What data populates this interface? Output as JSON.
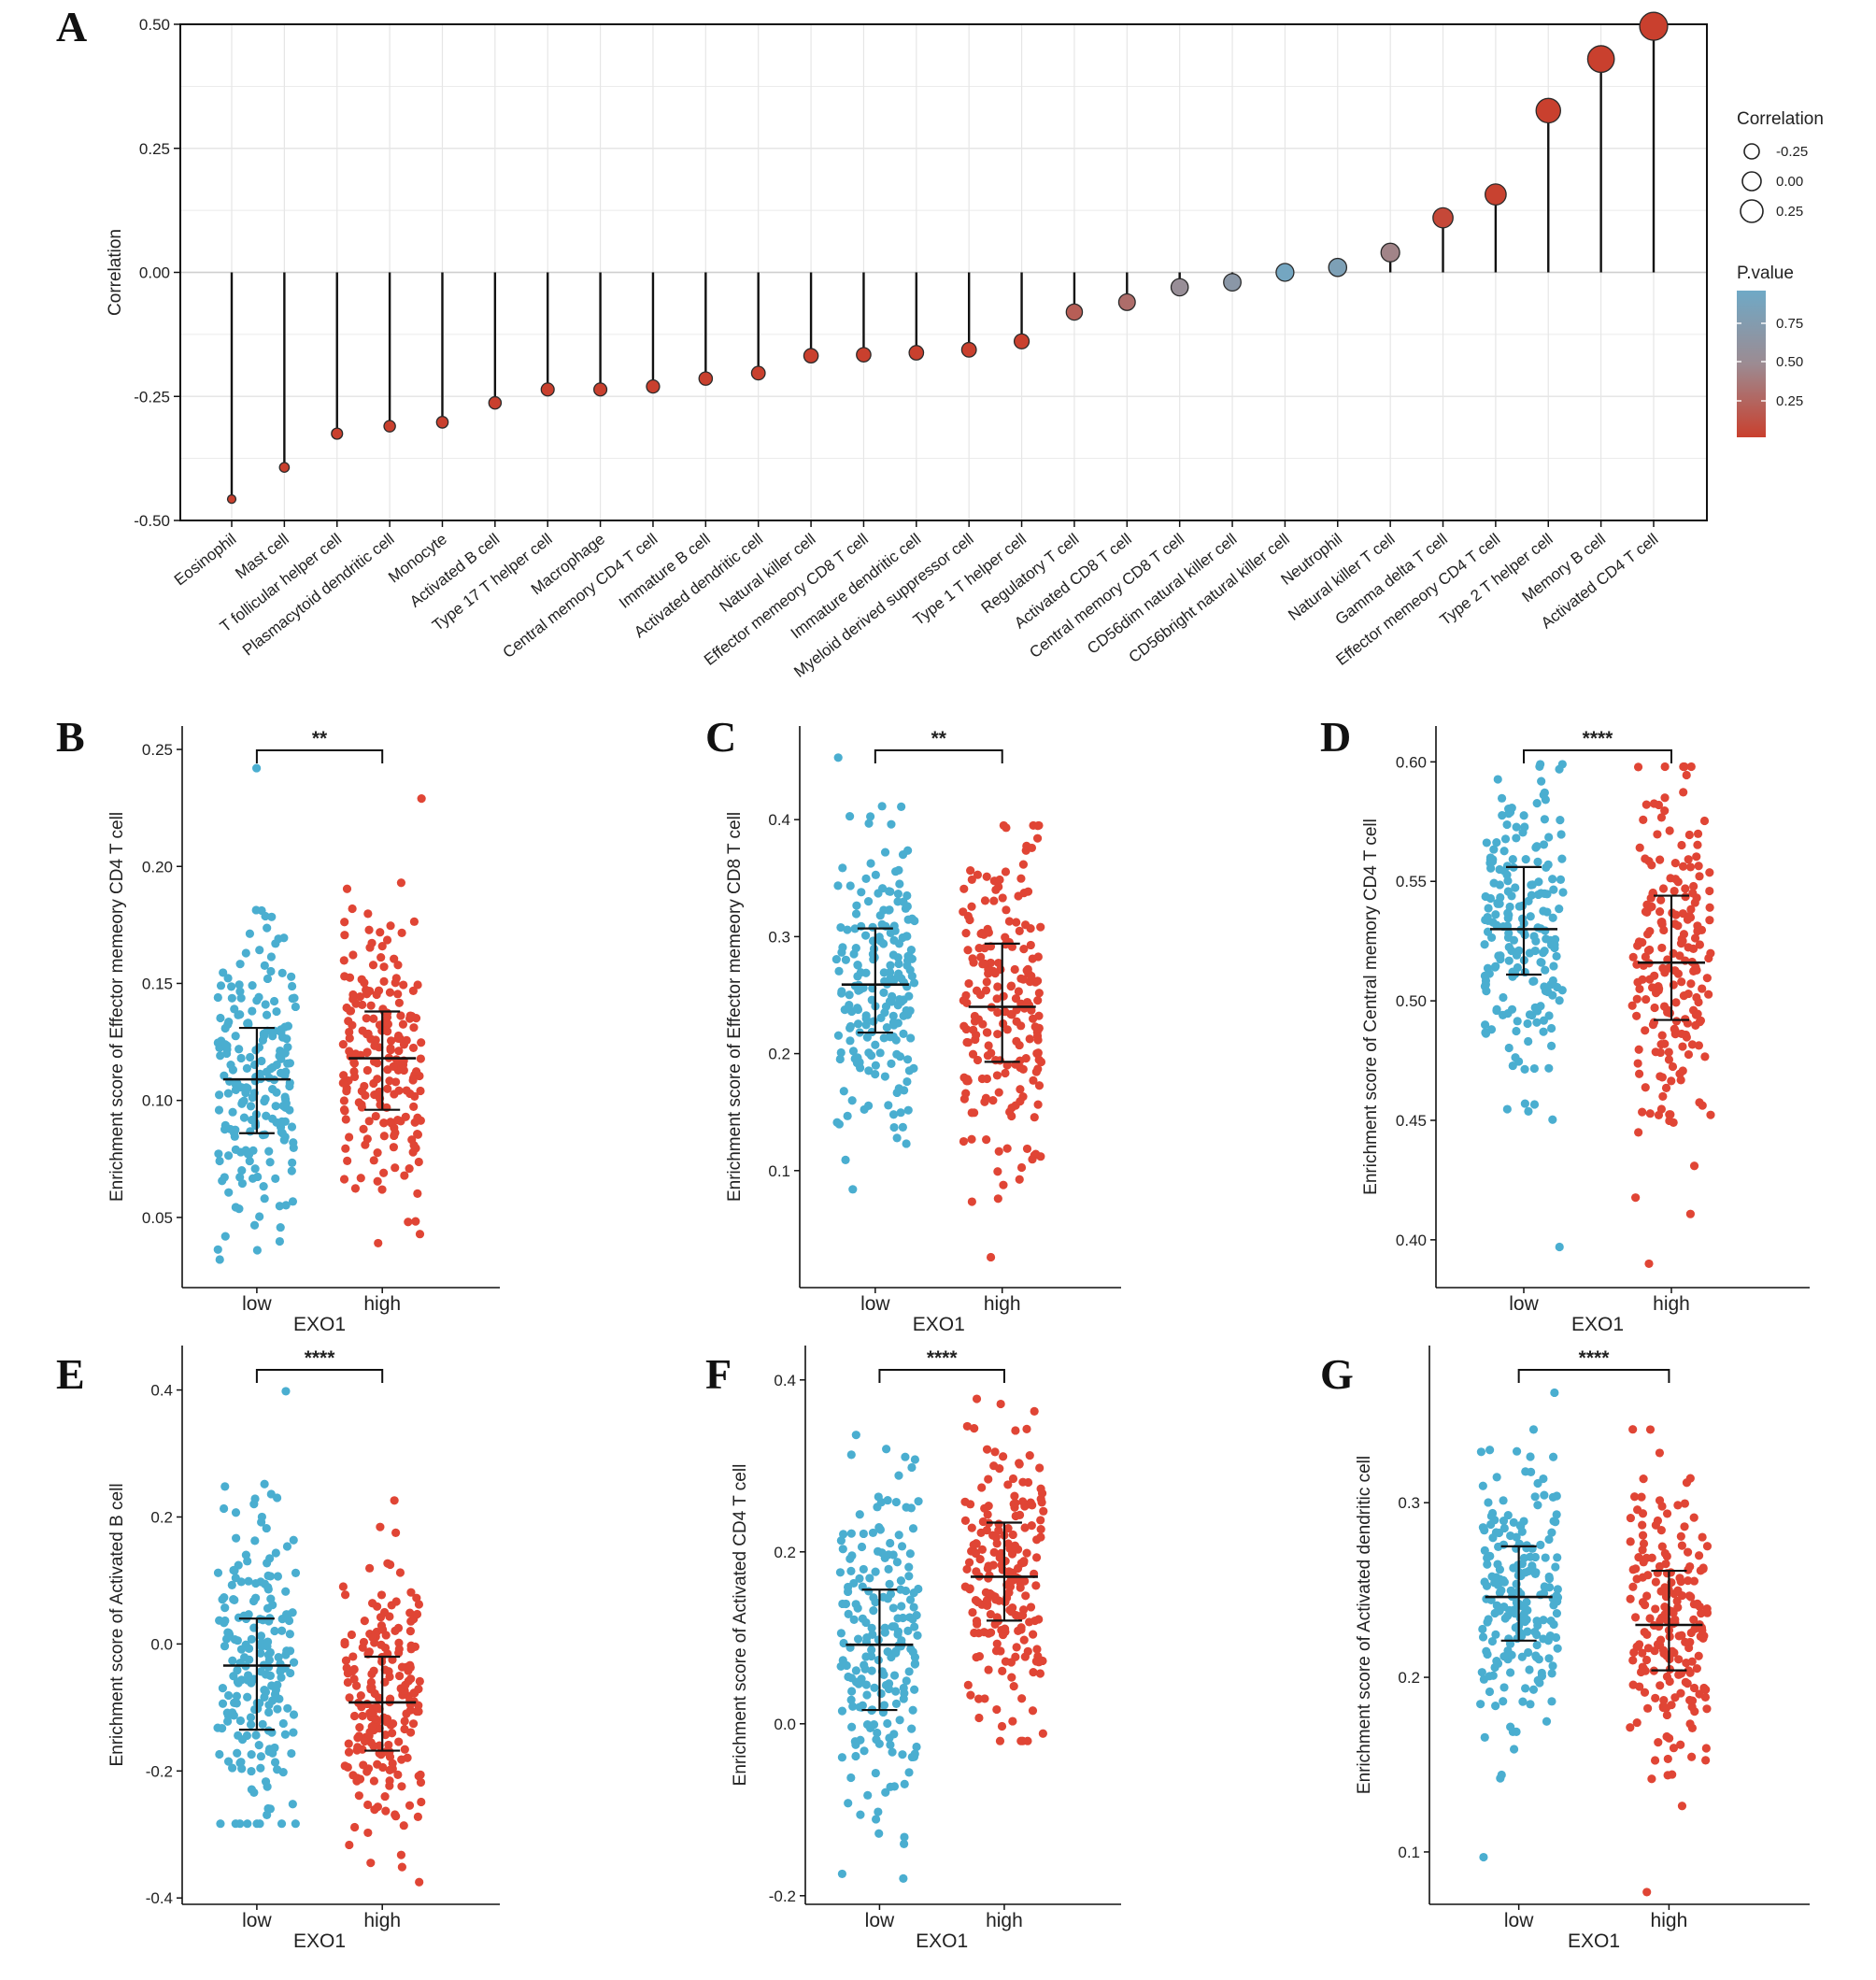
{
  "figure_labels": [
    "A",
    "B",
    "C",
    "D",
    "E",
    "F",
    "G"
  ],
  "colors": {
    "low": "#4aaed0",
    "high": "#e04535",
    "grid": "#e6e6e6",
    "stem": "#111111"
  },
  "chart_data": [
    {
      "id": "A",
      "type": "lollipop",
      "ylabel": "Correlation",
      "ylim": [
        -0.5,
        0.5
      ],
      "yticks": [
        {
          "v": 0.5,
          "t": "0.50"
        },
        {
          "v": 0.25,
          "t": "0.25"
        },
        {
          "v": 0,
          "t": "0.00"
        },
        {
          "v": -0.25,
          "t": "-0.25"
        },
        {
          "v": -0.5,
          "t": "-0.50"
        }
      ],
      "categories": [
        "Eosinophil",
        "Mast cell",
        "T follicular helper cell",
        "Plasmacytoid dendritic cell",
        "Monocyte",
        "Activated B cell",
        "Type 17 T helper cell",
        "Macrophage",
        "Central memory CD4 T cell",
        "Immature  B cell",
        "Activated dendritic cell",
        "Natural killer cell",
        "Effector memeory CD8 T cell",
        "Immature dendritic cell",
        "Myeloid derived suppressor cell",
        "Type 1 T helper cell",
        "Regulatory T cell",
        "Activated CD8 T cell",
        "Central memory CD8 T cell",
        "CD56dim natural killer cell",
        "CD56bright natural killer cell",
        "Neutrophil",
        "Natural killer T cell",
        "Gamma delta T cell",
        "Effector memeory CD4 T cell",
        "Type 2 T helper cell",
        "Memory B cell",
        "Activated CD4 T cell"
      ],
      "values": [
        -0.457,
        -0.393,
        -0.325,
        -0.31,
        -0.302,
        -0.263,
        -0.236,
        -0.236,
        -0.23,
        -0.214,
        -0.203,
        -0.168,
        -0.166,
        -0.162,
        -0.156,
        -0.139,
        -0.08,
        -0.06,
        -0.03,
        -0.02,
        0.0,
        0.01,
        0.04,
        0.11,
        0.157,
        0.326,
        0.43,
        0.496
      ],
      "pvalues": [
        0.0,
        0.0,
        0.0,
        0.0,
        0.0,
        0.0,
        0.0,
        0.0,
        0.0,
        0.0,
        0.0,
        0.0,
        0.0,
        0.0,
        0.0,
        0.0,
        0.2,
        0.3,
        0.55,
        0.7,
        0.95,
        0.85,
        0.45,
        0.05,
        0.01,
        0.0,
        0.0,
        0.0
      ],
      "legend": {
        "size_title": "Correlation",
        "size_values": [
          "-0.25",
          "0.00",
          "0.25"
        ],
        "color_title": "P.value",
        "color_ticks": [
          "0.75",
          "0.50",
          "0.25"
        ]
      }
    },
    {
      "id": "B",
      "type": "scatter-box",
      "ylabel": "Enrichment score of Effector memeory CD4 T cell",
      "xlabel": "EXO1",
      "categories": [
        "low",
        "high"
      ],
      "ylim": [
        0.02,
        0.26
      ],
      "yticks": [
        {
          "v": 0.05,
          "t": "0.05"
        },
        {
          "v": 0.1,
          "t": "0.10"
        },
        {
          "v": 0.15,
          "t": "0.15"
        },
        {
          "v": 0.2,
          "t": "0.20"
        },
        {
          "v": 0.25,
          "t": "0.25"
        }
      ],
      "groups": [
        {
          "name": "low",
          "median": 0.109,
          "q1": 0.086,
          "q3": 0.131,
          "min": 0.032,
          "max": 0.242,
          "n": 200,
          "seed": 11
        },
        {
          "name": "high",
          "median": 0.118,
          "q1": 0.096,
          "q3": 0.138,
          "min": 0.039,
          "max": 0.229,
          "n": 200,
          "seed": 12
        }
      ],
      "significance": "**"
    },
    {
      "id": "C",
      "type": "scatter-box",
      "ylabel": "Enrichment score of Effector memeory CD8 T cell",
      "xlabel": "EXO1",
      "categories": [
        "low",
        "high"
      ],
      "ylim": [
        0.0,
        0.48
      ],
      "yticks": [
        {
          "v": 0.1,
          "t": "0.1"
        },
        {
          "v": 0.2,
          "t": "0.2"
        },
        {
          "v": 0.3,
          "t": "0.3"
        },
        {
          "v": 0.4,
          "t": "0.4"
        }
      ],
      "groups": [
        {
          "name": "low",
          "median": 0.259,
          "q1": 0.218,
          "q3": 0.307,
          "min": 0.084,
          "max": 0.453,
          "n": 200,
          "seed": 21
        },
        {
          "name": "high",
          "median": 0.24,
          "q1": 0.193,
          "q3": 0.294,
          "min": 0.026,
          "max": 0.395,
          "n": 200,
          "seed": 22
        }
      ],
      "significance": "**"
    },
    {
      "id": "D",
      "type": "scatter-box",
      "ylabel": "Enrichment score of Central memory CD4 T cell",
      "xlabel": "EXO1",
      "categories": [
        "low",
        "high"
      ],
      "ylim": [
        0.38,
        0.615
      ],
      "yticks": [
        {
          "v": 0.4,
          "t": "0.40"
        },
        {
          "v": 0.45,
          "t": "0.45"
        },
        {
          "v": 0.5,
          "t": "0.50"
        },
        {
          "v": 0.55,
          "t": "0.55"
        },
        {
          "v": 0.6,
          "t": "0.60"
        }
      ],
      "groups": [
        {
          "name": "low",
          "median": 0.53,
          "q1": 0.511,
          "q3": 0.556,
          "min": 0.397,
          "max": 0.599,
          "n": 200,
          "seed": 31
        },
        {
          "name": "high",
          "median": 0.516,
          "q1": 0.492,
          "q3": 0.544,
          "min": 0.39,
          "max": 0.598,
          "n": 200,
          "seed": 32
        }
      ],
      "significance": "****"
    },
    {
      "id": "E",
      "type": "scatter-box",
      "ylabel": "Enrichment score of Activated B cell",
      "xlabel": "EXO1",
      "categories": [
        "low",
        "high"
      ],
      "ylim": [
        -0.41,
        0.47
      ],
      "yticks": [
        {
          "v": -0.4,
          "t": "-0.4"
        },
        {
          "v": -0.2,
          "t": "-0.2"
        },
        {
          "v": 0.0,
          "t": "0.0"
        },
        {
          "v": 0.2,
          "t": "0.2"
        },
        {
          "v": 0.4,
          "t": "0.4"
        }
      ],
      "groups": [
        {
          "name": "low",
          "median": -0.034,
          "q1": -0.135,
          "q3": 0.04,
          "min": -0.283,
          "max": 0.398,
          "n": 200,
          "seed": 41
        },
        {
          "name": "high",
          "median": -0.092,
          "q1": -0.168,
          "q3": -0.02,
          "min": -0.375,
          "max": 0.226,
          "n": 200,
          "seed": 42
        }
      ],
      "significance": "****"
    },
    {
      "id": "F",
      "type": "scatter-box",
      "ylabel": "Enrichment score of Activated CD4 T cell",
      "xlabel": "EXO1",
      "categories": [
        "low",
        "high"
      ],
      "ylim": [
        -0.21,
        0.44
      ],
      "yticks": [
        {
          "v": -0.2,
          "t": "-0.2"
        },
        {
          "v": 0.0,
          "t": "0.0"
        },
        {
          "v": 0.2,
          "t": "0.2"
        },
        {
          "v": 0.4,
          "t": "0.4"
        }
      ],
      "groups": [
        {
          "name": "low",
          "median": 0.092,
          "q1": 0.016,
          "q3": 0.156,
          "min": -0.18,
          "max": 0.336,
          "n": 200,
          "seed": 51
        },
        {
          "name": "high",
          "median": 0.171,
          "q1": 0.12,
          "q3": 0.234,
          "min": -0.02,
          "max": 0.378,
          "n": 200,
          "seed": 52
        }
      ],
      "significance": "****"
    },
    {
      "id": "G",
      "type": "scatter-box",
      "ylabel": "Enrichment score of Activated dendritic cell",
      "xlabel": "EXO1",
      "categories": [
        "low",
        "high"
      ],
      "ylim": [
        0.07,
        0.39
      ],
      "yticks": [
        {
          "v": 0.1,
          "t": "0.1"
        },
        {
          "v": 0.2,
          "t": "0.2"
        },
        {
          "v": 0.3,
          "t": "0.3"
        }
      ],
      "groups": [
        {
          "name": "low",
          "median": 0.246,
          "q1": 0.221,
          "q3": 0.275,
          "min": 0.097,
          "max": 0.363,
          "n": 200,
          "seed": 61
        },
        {
          "name": "high",
          "median": 0.23,
          "q1": 0.204,
          "q3": 0.261,
          "min": 0.077,
          "max": 0.342,
          "n": 200,
          "seed": 62
        }
      ],
      "significance": "****"
    }
  ]
}
